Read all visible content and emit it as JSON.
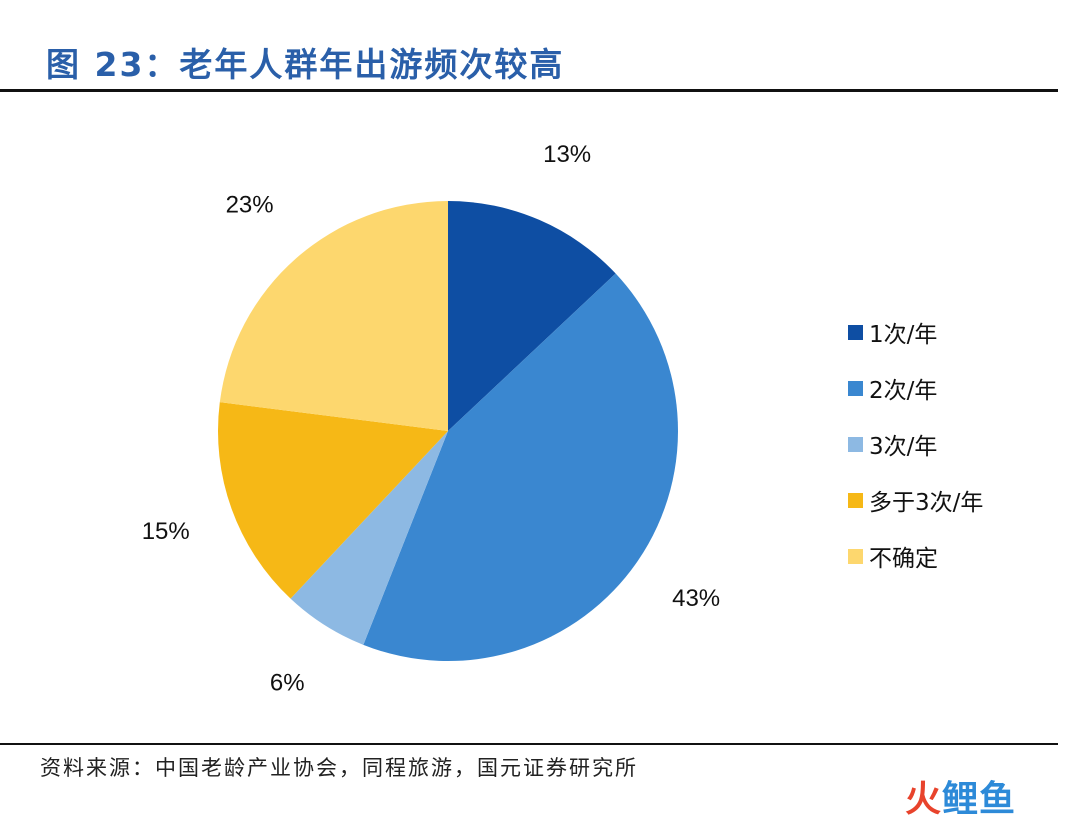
{
  "title": "图 23：老年人群年出游频次较高",
  "source": "资料来源：中国老龄产业协会，同程旅游，国元证券研究所",
  "watermark": {
    "part1": "火",
    "part2": "鲤鱼"
  },
  "chart_data": {
    "type": "pie",
    "title": "",
    "slices": [
      {
        "label": "1次/年",
        "value": 13,
        "display": "13%",
        "color": "#0e4ea3"
      },
      {
        "label": "2次/年",
        "value": 43,
        "display": "43%",
        "color": "#3a87d0"
      },
      {
        "label": "3次/年",
        "value": 6,
        "display": "6%",
        "color": "#8db9e3"
      },
      {
        "label": "多于3次/年",
        "value": 15,
        "display": "15%",
        "color": "#f6b816"
      },
      {
        "label": "不确定",
        "value": 23,
        "display": "23%",
        "color": "#fdd76e"
      }
    ],
    "legend_position": "right",
    "start_angle": "12 o'clock",
    "direction": "clockwise"
  }
}
